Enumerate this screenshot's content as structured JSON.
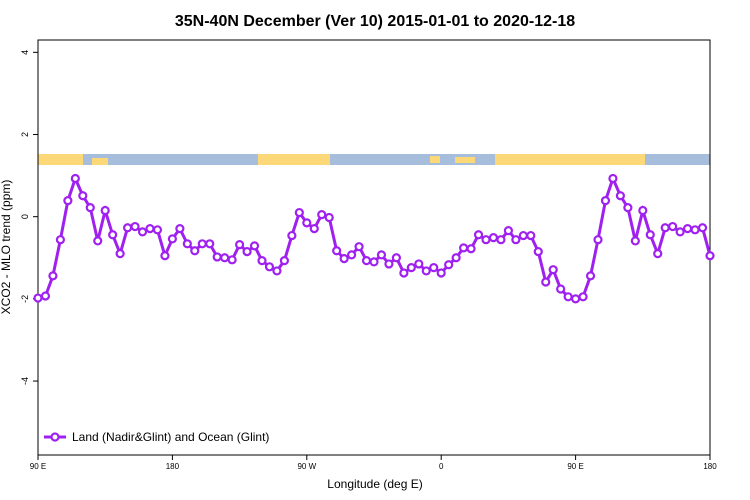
{
  "chart_data": {
    "type": "line",
    "title": "35N-40N December (Ver 10)   2015-01-01 to 2020-12-18",
    "x_label": "Longitude (deg E)",
    "y_label": "XCO2 - MLO trend (ppm)",
    "x": [
      90,
      95,
      100,
      105,
      110,
      115,
      120,
      125,
      130,
      135,
      140,
      145,
      150,
      155,
      160,
      165,
      170,
      175,
      180,
      185,
      190,
      195,
      200,
      205,
      210,
      215,
      220,
      225,
      230,
      235,
      240,
      245,
      250,
      255,
      260,
      265,
      270,
      275,
      280,
      285,
      290,
      295,
      300,
      305,
      310,
      315,
      320,
      325,
      330,
      335,
      340,
      345,
      350,
      355,
      360,
      365,
      370,
      375,
      380,
      385,
      390,
      395,
      400,
      405,
      410,
      415,
      420,
      425,
      430,
      435,
      440,
      445,
      450,
      455,
      460,
      465,
      470,
      475,
      480,
      485,
      490,
      495,
      500,
      505,
      510,
      515,
      520,
      525,
      530,
      535,
      540
    ],
    "series": [
      {
        "name": "Land (Nadir&Glint) and Ocean (Glint)",
        "color": "#a020f0",
        "values": [
          -1.98,
          -1.93,
          -1.44,
          -0.56,
          0.39,
          0.93,
          0.51,
          0.22,
          -0.59,
          0.15,
          -0.44,
          -0.9,
          -0.27,
          -0.24,
          -0.37,
          -0.29,
          -0.32,
          -0.95,
          -0.54,
          -0.29,
          -0.66,
          -0.83,
          -0.66,
          -0.66,
          -0.98,
          -1.0,
          -1.05,
          -0.68,
          -0.85,
          -0.71,
          -1.07,
          -1.22,
          -1.32,
          -1.07,
          -0.46,
          0.1,
          -0.15,
          -0.29,
          0.05,
          -0.02,
          -0.83,
          -1.02,
          -0.93,
          -0.73,
          -1.07,
          -1.1,
          -0.93,
          -1.15,
          -1.0,
          -1.37,
          -1.24,
          -1.15,
          -1.32,
          -1.24,
          -1.37,
          -1.17,
          -1.0,
          -0.76,
          -0.78,
          -0.44,
          -0.56,
          -0.51,
          -0.56,
          -0.34,
          -0.56,
          -0.46,
          -0.46,
          -0.85,
          -1.59,
          -1.29,
          -1.76,
          -1.95,
          -2.0,
          -1.95,
          -1.44,
          -0.56,
          0.39,
          0.93,
          0.51,
          0.22,
          -0.59,
          0.15,
          -0.44,
          -0.9,
          -0.27,
          -0.24,
          -0.37,
          -0.29,
          -0.32,
          -0.27,
          -0.95
        ]
      }
    ],
    "xlim": [
      90,
      540
    ],
    "xticks": [
      {
        "value": 90,
        "label": "90 E"
      },
      {
        "value": 180,
        "label": "180"
      },
      {
        "value": 270,
        "label": "90 W"
      },
      {
        "value": 360,
        "label": "0"
      },
      {
        "value": 450,
        "label": "90 E"
      },
      {
        "value": 540,
        "label": "180"
      }
    ],
    "ylim": [
      -5.8,
      4.3
    ],
    "yticks": [
      -4,
      -2,
      0,
      2,
      4
    ],
    "legend": "bottom-left"
  }
}
